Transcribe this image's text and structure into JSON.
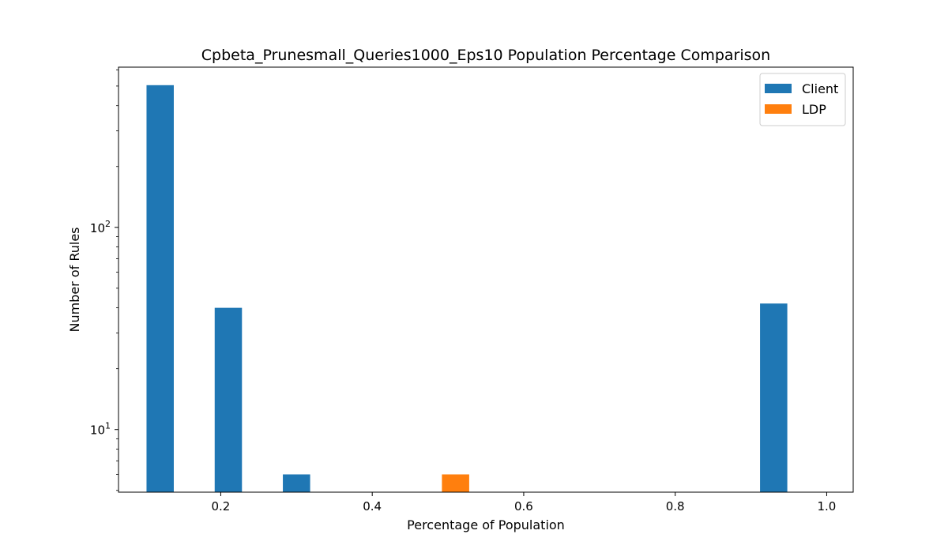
{
  "chart_data": {
    "type": "bar",
    "title": "Cpbeta_Prunesmall_Queries1000_Eps10 Population Percentage Comparison",
    "xlabel": "Percentage of Population",
    "ylabel": "Number of Rules",
    "yscale": "log",
    "xlim": [
      0.065,
      1.035
    ],
    "ylim": [
      4.9,
      620
    ],
    "xticks": [
      0.2,
      0.4,
      0.6,
      0.8,
      1.0
    ],
    "xtick_labels": [
      "0.2",
      "0.4",
      "0.6",
      "0.8",
      "1.0"
    ],
    "yticks": [
      10,
      100
    ],
    "ytick_labels": [
      {
        "base": "10",
        "exp": "1"
      },
      {
        "base": "10",
        "exp": "2"
      }
    ],
    "legend_position": "top-right",
    "bar_width": 0.036,
    "series": [
      {
        "name": "Client",
        "color": "#1f77b4",
        "bars": [
          {
            "x": 0.12,
            "value": 505
          },
          {
            "x": 0.21,
            "value": 40
          },
          {
            "x": 0.3,
            "value": 6
          },
          {
            "x": 0.93,
            "value": 42
          }
        ]
      },
      {
        "name": "LDP",
        "color": "#ff7f0e",
        "bars": [
          {
            "x": 0.51,
            "value": 6
          }
        ]
      }
    ]
  }
}
